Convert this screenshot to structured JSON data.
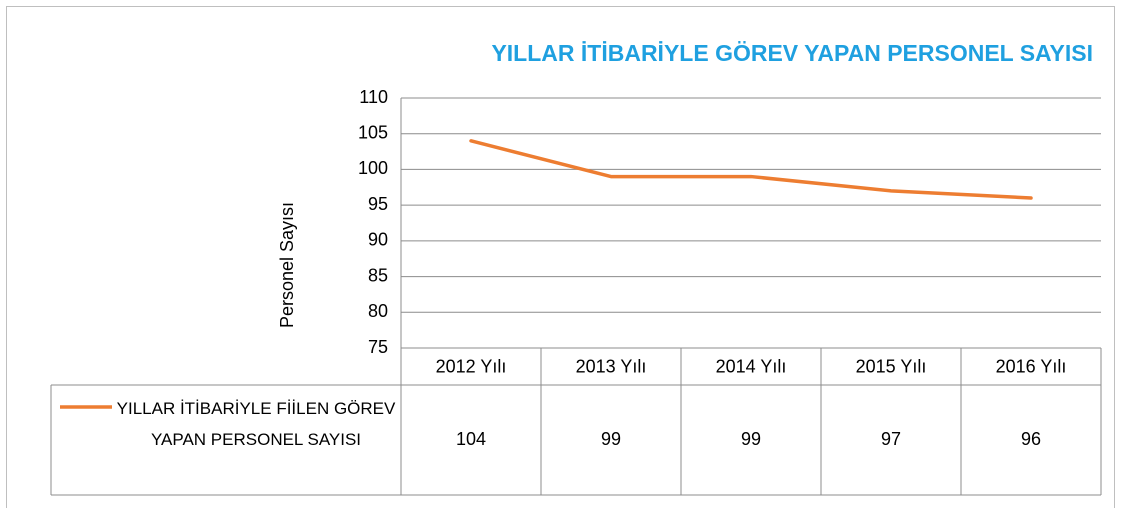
{
  "chart_data": {
    "type": "line",
    "title": "YILLAR İTİBARİYLE GÖREV YAPAN PERSONEL SAYISI",
    "y_label": "Personel Sayısı",
    "categories": [
      "2012 Yılı",
      "2013 Yılı",
      "2014 Yılı",
      "2015 Yılı",
      "2016 Yılı"
    ],
    "series": [
      {
        "name": "YILLAR İTİBARİYLE FİİLEN GÖREV YAPAN PERSONEL SAYISI",
        "color": "#ed7d31",
        "values": [
          104,
          99,
          99,
          97,
          96
        ]
      }
    ],
    "ylim": [
      75,
      110
    ],
    "yticks": [
      75,
      80,
      85,
      90,
      95,
      100,
      105,
      110
    ],
    "grid": true,
    "data_table": true
  }
}
